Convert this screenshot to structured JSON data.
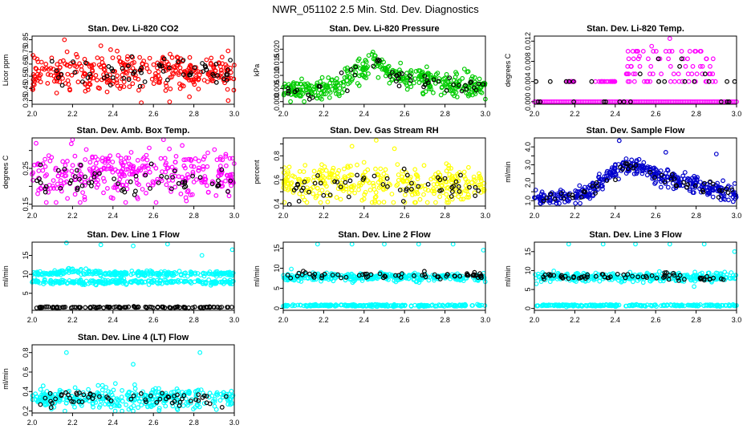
{
  "title": "NWR_051102  2.5 Min. Std. Dev. Diagnostics",
  "colors": {
    "black": "#000000"
  },
  "chart_data": [
    {
      "type": "scatter",
      "title": "Stan. Dev. Li-820 CO2",
      "ylabel": "Licor ppm",
      "color": "#ff0000",
      "xlim": [
        2.0,
        3.0
      ],
      "ylim": [
        0.32,
        0.88
      ],
      "xticks": [
        "2.0",
        "2.2",
        "2.4",
        "2.6",
        "2.8",
        "3.0"
      ],
      "yticks": [
        0.35,
        0.45,
        0.55,
        0.65,
        0.75,
        0.85
      ],
      "yticklabels": [
        "0.35",
        "0.45",
        "0.55",
        "0.65",
        "0.75",
        "0.85"
      ],
      "bands": [
        {
          "y": 0.58,
          "sd": 0.08,
          "n": 340,
          "lo": 0.33,
          "hi": 0.87
        }
      ],
      "black": {
        "y": 0.57,
        "sd": 0.06,
        "n": 60
      },
      "outliers": [
        [
          2.16,
          0.85
        ],
        [
          2.34,
          0.8
        ],
        [
          2.97,
          0.35
        ],
        [
          2.68,
          0.34
        ]
      ]
    },
    {
      "type": "scatter",
      "title": "Stan. Dev. Li-820 Pressure",
      "ylabel": "kPa",
      "color": "#00cc00",
      "xlim": [
        2.0,
        3.0
      ],
      "ylim": [
        -0.001,
        0.025
      ],
      "xticks": [
        "2.0",
        "2.2",
        "2.4",
        "2.6",
        "2.8",
        "3.0"
      ],
      "yticks": [
        0.0,
        0.005,
        0.01,
        0.015,
        0.02
      ],
      "yticklabels": [
        "0.000",
        "0.005",
        "0.010",
        "0.015",
        "0.020"
      ],
      "profile": [
        [
          2.0,
          0.004
        ],
        [
          2.2,
          0.005
        ],
        [
          2.3,
          0.008
        ],
        [
          2.4,
          0.013
        ],
        [
          2.45,
          0.016
        ],
        [
          2.5,
          0.012
        ],
        [
          2.6,
          0.009
        ],
        [
          2.8,
          0.007
        ],
        [
          3.0,
          0.006
        ]
      ],
      "bands": [
        {
          "sd": 0.0022,
          "n": 380,
          "lo": 0.0,
          "hi": 0.021
        }
      ],
      "black": {
        "sd": 0.0018,
        "n": 50
      },
      "outliers": []
    },
    {
      "type": "scatter",
      "title": "Stan. Dev. Li-820 Temp.",
      "ylabel": "degrees C",
      "color": "#ff00ff",
      "xlim": [
        2.0,
        3.0
      ],
      "ylim": [
        -0.0005,
        0.013
      ],
      "xticks": [
        "2.0",
        "2.2",
        "2.4",
        "2.6",
        "2.8",
        "3.0"
      ],
      "yticks": [
        0.0,
        0.004,
        0.008,
        0.012
      ],
      "yticklabels": [
        "0.000",
        "0.004",
        "0.008",
        "0.012"
      ],
      "levels": [
        0.0,
        0.004,
        0.0055,
        0.007,
        0.0085,
        0.01
      ],
      "baseline_y": 0.0,
      "mid_ranges": [
        [
          2.15,
          2.2
        ],
        [
          2.3,
          2.4
        ],
        [
          2.45,
          2.9
        ]
      ],
      "outliers": [
        [
          2.67,
          0.0125
        ],
        [
          2.58,
          0.011
        ],
        [
          2.52,
          0.009
        ]
      ]
    },
    {
      "type": "scatter",
      "title": "Stan. Dev. Amb. Box Temp.",
      "ylabel": "degrees C",
      "color": "#ff00ff",
      "xlim": [
        2.0,
        3.0
      ],
      "ylim": [
        0.145,
        0.335
      ],
      "xticks": [
        "2.0",
        "2.2",
        "2.4",
        "2.6",
        "2.8",
        "3.0"
      ],
      "yticks": [
        0.15,
        0.2,
        0.25,
        0.3
      ],
      "yticklabels": [
        "0.15",
        "",
        "0.25",
        ""
      ],
      "bands": [
        {
          "y": 0.235,
          "sd": 0.033,
          "n": 340,
          "lo": 0.155,
          "hi": 0.32
        }
      ],
      "black": {
        "y": 0.215,
        "sd": 0.02,
        "n": 60
      },
      "outliers": [
        [
          2.2,
          0.33
        ],
        [
          2.65,
          0.33
        ],
        [
          2.02,
          0.32
        ]
      ]
    },
    {
      "type": "scatter",
      "title": "Stan. Dev. Gas Stream RH",
      "ylabel": "percent",
      "color": "#ffff00",
      "xlim": [
        2.0,
        3.0
      ],
      "ylim": [
        0.38,
        0.95
      ],
      "xticks": [
        "2.0",
        "2.2",
        "2.4",
        "2.6",
        "2.8",
        "3.0"
      ],
      "yticks": [
        0.4,
        0.5,
        0.6,
        0.7,
        0.8,
        0.9
      ],
      "yticklabels": [
        "0.4",
        "",
        "0.6",
        "",
        "0.8",
        ""
      ],
      "bands": [
        {
          "y": 0.57,
          "sd": 0.08,
          "n": 340,
          "lo": 0.41,
          "hi": 0.93
        }
      ],
      "black": {
        "y": 0.55,
        "sd": 0.06,
        "n": 55
      },
      "outliers": [
        [
          2.46,
          0.93
        ],
        [
          2.34,
          0.88
        ],
        [
          2.55,
          0.86
        ]
      ]
    },
    {
      "type": "scatter",
      "title": "Stan. Dev. Sample Flow",
      "ylabel": "ml/min",
      "color": "#0000cc",
      "xlim": [
        2.0,
        3.0
      ],
      "ylim": [
        0.7,
        4.5
      ],
      "xticks": [
        "2.0",
        "2.2",
        "2.4",
        "2.6",
        "2.8",
        "3.0"
      ],
      "yticks": [
        1.0,
        1.5,
        2.0,
        2.5,
        3.0,
        3.5,
        4.0
      ],
      "yticklabels": [
        "1.0",
        "",
        "2.0",
        "",
        "3.0",
        "",
        "4.0"
      ],
      "profile": [
        [
          2.0,
          1.2
        ],
        [
          2.2,
          1.25
        ],
        [
          2.28,
          1.6
        ],
        [
          2.35,
          2.3
        ],
        [
          2.45,
          2.9
        ],
        [
          2.5,
          3.0
        ],
        [
          2.6,
          2.4
        ],
        [
          2.7,
          2.1
        ],
        [
          2.8,
          1.9
        ],
        [
          2.9,
          1.6
        ],
        [
          3.0,
          1.4
        ]
      ],
      "bands": [
        {
          "sd": 0.22,
          "n": 380,
          "lo": 0.85,
          "hi": 4.4
        }
      ],
      "black": {
        "sd": 0.2,
        "n": 50
      },
      "outliers": [
        [
          2.42,
          4.35
        ],
        [
          2.9,
          3.6
        ],
        [
          2.65,
          3.7
        ]
      ]
    },
    {
      "type": "scatter",
      "title": "Stan. Dev. Line 1 Flow",
      "ylabel": "ml/min",
      "color": "#00ffff",
      "xlim": [
        2.0,
        3.0
      ],
      "ylim": [
        0.5,
        18.5
      ],
      "xticks": [
        "2.0",
        "2.2",
        "2.4",
        "2.6",
        "2.8",
        "3.0"
      ],
      "yticks": [
        5,
        10,
        15
      ],
      "yticklabels": [
        "5",
        "10",
        "15"
      ],
      "bands": [
        {
          "y": 10.2,
          "sd": 0.35,
          "n": 260
        },
        {
          "y": 8.0,
          "sd": 0.3,
          "n": 240
        }
      ],
      "bump": {
        "x": 2.2,
        "w": 0.06,
        "a": 0.9
      },
      "black": {
        "y": 1.3,
        "sd": 0.08,
        "n": 110
      },
      "outliers": [
        [
          2.17,
          18.3
        ],
        [
          2.34,
          17.8
        ],
        [
          2.5,
          17.5
        ],
        [
          2.67,
          18.0
        ],
        [
          2.84,
          15.0
        ],
        [
          2.99,
          16.5
        ]
      ]
    },
    {
      "type": "scatter",
      "title": "Stan. Dev. Line 2 Flow",
      "ylabel": "ml/min",
      "color": "#00ffff",
      "xlim": [
        2.0,
        3.0
      ],
      "ylim": [
        -0.5,
        16.5
      ],
      "xticks": [
        "2.0",
        "2.2",
        "2.4",
        "2.6",
        "2.8",
        "3.0"
      ],
      "yticks": [
        0,
        5,
        10,
        15
      ],
      "yticklabels": [
        "0",
        "5",
        "10",
        "15"
      ],
      "bands": [
        {
          "y": 7.8,
          "sd": 0.5,
          "n": 320
        },
        {
          "y": 0.7,
          "sd": 0.12,
          "n": 220
        }
      ],
      "black": {
        "y": 8.2,
        "sd": 0.4,
        "n": 65
      },
      "outliers": [
        [
          2.17,
          16.0
        ],
        [
          2.34,
          16.0
        ],
        [
          2.5,
          16.0
        ],
        [
          2.67,
          16.0
        ],
        [
          2.84,
          16.0
        ],
        [
          2.99,
          14.5
        ],
        [
          2.04,
          9.8
        ]
      ]
    },
    {
      "type": "scatter",
      "title": "Stan. Dev. Line 3 Flow",
      "ylabel": "ml/min",
      "color": "#00ffff",
      "xlim": [
        2.0,
        3.0
      ],
      "ylim": [
        -0.5,
        17.5
      ],
      "xticks": [
        "2.0",
        "2.2",
        "2.4",
        "2.6",
        "2.8",
        "3.0"
      ],
      "yticks": [
        0,
        5,
        10,
        15
      ],
      "yticklabels": [
        "0",
        "5",
        "10",
        "15"
      ],
      "bands": [
        {
          "y": 8.3,
          "sd": 0.55,
          "n": 320
        },
        {
          "y": 0.8,
          "sd": 0.12,
          "n": 220
        }
      ],
      "black": {
        "y": 8.3,
        "sd": 0.5,
        "n": 65
      },
      "outliers": [
        [
          2.17,
          17.0
        ],
        [
          2.34,
          17.0
        ],
        [
          2.5,
          17.0
        ],
        [
          2.67,
          17.0
        ],
        [
          2.84,
          17.0
        ],
        [
          2.99,
          15.0
        ],
        [
          2.01,
          6.5
        ],
        [
          2.79,
          5.8
        ]
      ]
    },
    {
      "type": "scatter",
      "title": "Stan. Dev. Line 4 (LT) Flow",
      "ylabel": "ml/min",
      "color": "#00ffff",
      "xlim": [
        2.0,
        3.0
      ],
      "ylim": [
        0.18,
        0.88
      ],
      "xticks": [
        "2.0",
        "2.2",
        "2.4",
        "2.6",
        "2.8",
        "3.0"
      ],
      "yticks": [
        0.2,
        0.4,
        0.6,
        0.8
      ],
      "yticklabels": [
        "0.2",
        "0.4",
        "0.6",
        "0.8"
      ],
      "bands": [
        {
          "y": 0.33,
          "sd": 0.05,
          "n": 340,
          "lo": 0.2,
          "hi": 0.55
        }
      ],
      "black": {
        "y": 0.33,
        "sd": 0.04,
        "n": 60
      },
      "outliers": [
        [
          2.17,
          0.8
        ],
        [
          2.5,
          0.68
        ],
        [
          2.83,
          0.8
        ],
        [
          2.5,
          0.2
        ]
      ]
    }
  ]
}
